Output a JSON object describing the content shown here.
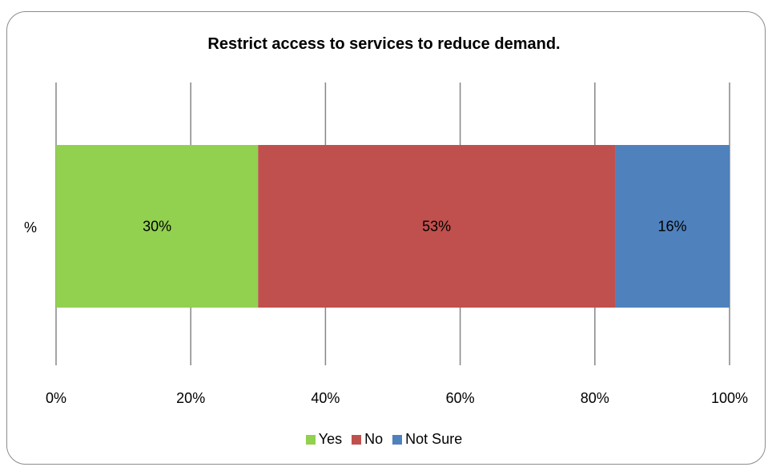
{
  "chart_data": {
    "type": "bar",
    "orientation": "horizontal",
    "stacked": true,
    "title": "Restrict access to services to reduce demand.",
    "categories": [
      "%"
    ],
    "series": [
      {
        "name": "Yes",
        "values": [
          30
        ],
        "label": "30%",
        "color": "#92d050"
      },
      {
        "name": "No",
        "values": [
          53
        ],
        "label": "53%",
        "color": "#c0504d"
      },
      {
        "name": "Not Sure",
        "values": [
          16
        ],
        "label": "16%",
        "color": "#4f81bd"
      }
    ],
    "xlim": [
      0,
      100
    ],
    "xticks": [
      0,
      20,
      40,
      60,
      80,
      100
    ],
    "xtick_labels": [
      "0%",
      "20%",
      "40%",
      "60%",
      "80%",
      "100%"
    ],
    "grid": true,
    "legend": "bottom"
  }
}
